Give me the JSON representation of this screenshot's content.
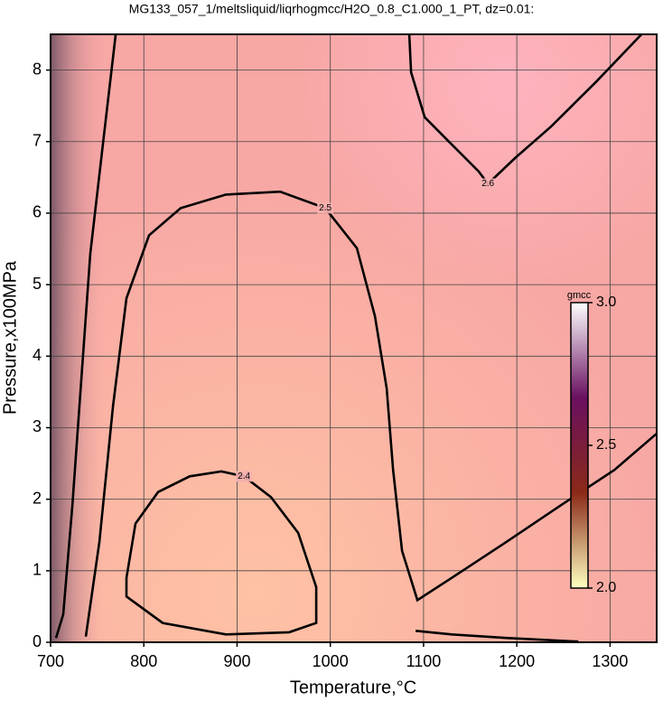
{
  "chart_data": {
    "type": "contour",
    "title": "MG133_057_1/meltsliquid/liqrhogmcc/H2O_0.8_C1.000_1_PT, dz=0.01:",
    "x_label": "Temperature,°C",
    "y_label": "Pressure,x100MPa",
    "xlim": [
      700,
      1350
    ],
    "ylim": [
      0,
      8.5
    ],
    "xticks": [
      700,
      800,
      900,
      1000,
      1100,
      1200,
      1300
    ],
    "yticks": [
      0,
      1,
      2,
      3,
      4,
      5,
      6,
      7,
      8
    ],
    "grid": true,
    "contours": [
      {
        "level": 2.4,
        "color": "#000000",
        "x": [
          781.4,
          791.1,
          815.3,
          849.2,
          883.1,
          907.4,
          936.4,
          965.5,
          984.9,
          984.9,
          955.8,
          888.0,
          820.2,
          781.4,
          781.4
        ],
        "y": [
          0.9,
          1.66,
          2.1,
          2.32,
          2.39,
          2.32,
          2.03,
          1.53,
          0.77,
          0.27,
          0.14,
          0.11,
          0.27,
          0.64,
          0.9
        ]
      },
      {
        "level": 2.5,
        "color": "#000000",
        "x": [
          737.8,
          752.3,
          766.9,
          781.4,
          805.6,
          839.5,
          888.0,
          946.1,
          994.6,
          1028.5,
          1047.9,
          1060.5,
          1067.3,
          1076.9,
          1093.4,
          1130.2,
          1188.4,
          1246.5,
          1304.7,
          1350.2,
          null,
          1091.5,
          1130.2,
          1188.4,
          1265.9
        ],
        "y": [
          0.08,
          1.4,
          3.3,
          4.81,
          5.69,
          6.07,
          6.26,
          6.3,
          6.07,
          5.51,
          4.56,
          3.55,
          2.41,
          1.28,
          0.59,
          0.9,
          1.4,
          1.91,
          2.41,
          2.92,
          null,
          0.16,
          0.11,
          0.06,
          0.01
        ]
      },
      {
        "level": 2.6,
        "color": "#000000",
        "x": [
          1084.7,
          1086.6,
          1101.2,
          1130.2,
          1159.3,
          1169.0,
          1198.1,
          1236.8,
          1285.3,
          1333.7,
          null,
          769.8,
          757.2,
          742.6,
          732.9,
          723.3,
          713.6,
          705.8
        ],
        "y": [
          8.5,
          7.97,
          7.34,
          6.96,
          6.58,
          6.41,
          6.77,
          7.21,
          7.84,
          8.5,
          null,
          8.5,
          7.08,
          5.44,
          3.67,
          1.91,
          0.39,
          0.06
        ]
      }
    ],
    "colorbar": {
      "label": "gmcc",
      "lim": [
        2,
        3
      ],
      "ticks": [
        {
          "value": 2,
          "label": "2.0"
        },
        {
          "value": 2.5,
          "label": "2.5"
        },
        {
          "value": 3,
          "label": "3.0"
        }
      ],
      "colors": [
        "#ffffc0",
        "#8b2a18",
        "#6a1060",
        "#ffffff"
      ]
    }
  }
}
